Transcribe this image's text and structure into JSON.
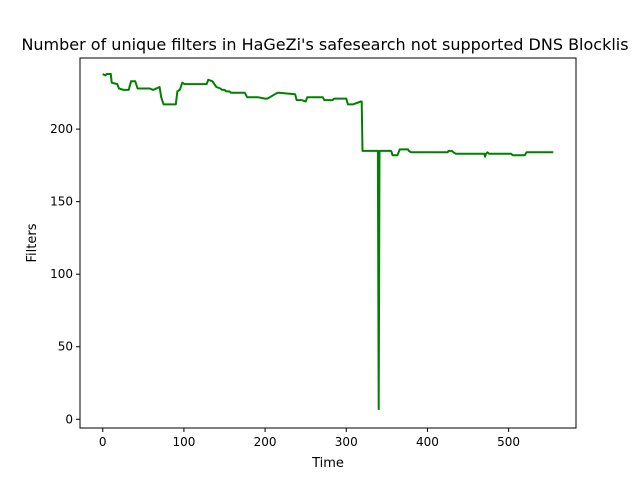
{
  "chart_data": {
    "type": "line",
    "title": "Number of unique filters in HaGeZi's safesearch not supported DNS Blocklis",
    "xlabel": "Time",
    "ylabel": "Filters",
    "xlim": [
      -28,
      583
    ],
    "ylim": [
      -6,
      249
    ],
    "xticks": [
      0,
      100,
      200,
      300,
      400,
      500
    ],
    "yticks": [
      0,
      50,
      100,
      150,
      200
    ],
    "grid": false,
    "legend": "none",
    "series": [
      {
        "color": "#008000",
        "x": [
          0,
          3,
          5,
          10,
          11,
          18,
          20,
          26,
          32,
          35,
          40,
          43,
          48,
          58,
          62,
          66,
          70,
          72,
          75,
          90,
          92,
          95,
          98,
          101,
          128,
          130,
          135,
          140,
          145,
          147,
          150,
          152,
          156,
          158,
          175,
          178,
          188,
          191,
          200,
          203,
          215,
          217,
          237,
          239,
          245,
          250,
          252,
          270,
          271,
          273,
          283,
          285,
          300,
          302,
          308,
          318,
          319,
          320,
          337,
          338,
          339,
          340,
          341,
          355,
          356,
          357,
          363,
          366,
          376,
          377,
          380,
          425,
          426,
          430,
          432,
          435,
          440,
          470,
          471,
          472,
          474,
          476,
          477,
          490,
          492,
          500,
          503,
          505,
          520,
          522,
          532,
          535,
          555
        ],
        "y": [
          238,
          237,
          238,
          238,
          232,
          231,
          228,
          227,
          227,
          233,
          233,
          228,
          228,
          228,
          227,
          228,
          229,
          222,
          217,
          217,
          226,
          227,
          232,
          231,
          231,
          234,
          233,
          229,
          228,
          227,
          227,
          226,
          226,
          225,
          225,
          222,
          222,
          222,
          221,
          221,
          225,
          225,
          224,
          220,
          220,
          219,
          222,
          222,
          222,
          220,
          220,
          221,
          221,
          217,
          217,
          219,
          219,
          185,
          185,
          185,
          185,
          7,
          185,
          185,
          184,
          182,
          182,
          186,
          186,
          185,
          184,
          184,
          185,
          185,
          184,
          183,
          183,
          183,
          181,
          183,
          184,
          183,
          183,
          183,
          183,
          183,
          183,
          182,
          182,
          184,
          184,
          184,
          184
        ]
      }
    ]
  }
}
